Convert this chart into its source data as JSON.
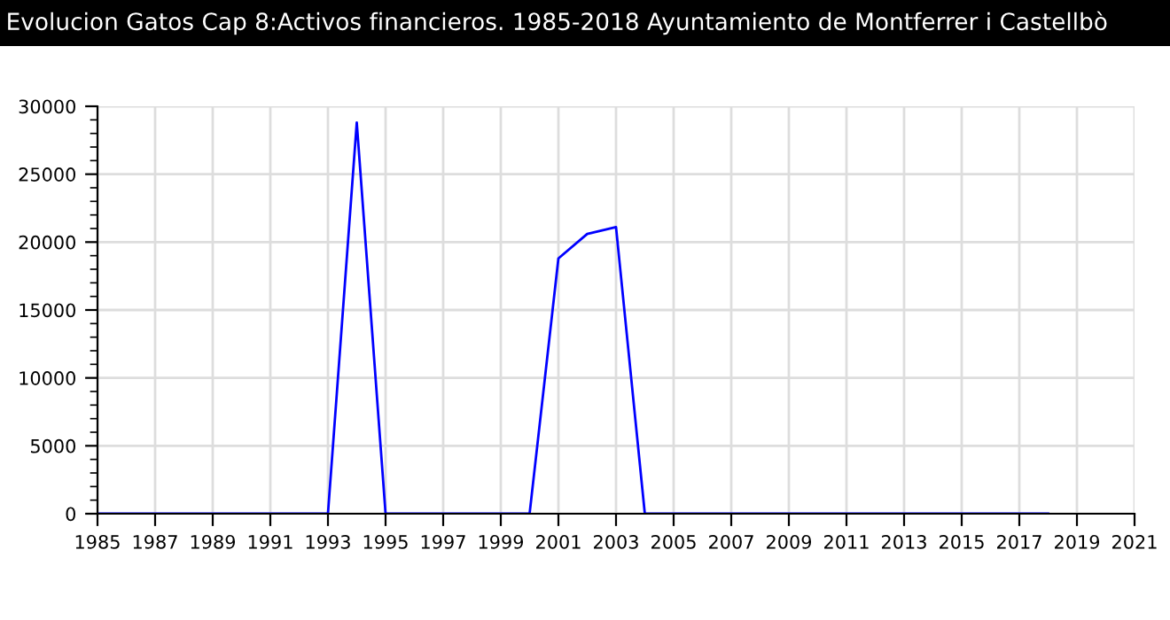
{
  "chart_data": {
    "type": "line",
    "title": "Evolucion Gatos Cap 8:Activos financieros. 1985-2018 Ayuntamiento de Montferrer i Castellbò",
    "x": [
      1985,
      1986,
      1987,
      1988,
      1989,
      1990,
      1991,
      1992,
      1993,
      1994,
      1995,
      1996,
      1997,
      1998,
      1999,
      2000,
      2001,
      2002,
      2003,
      2004,
      2005,
      2006,
      2007,
      2008,
      2009,
      2010,
      2011,
      2012,
      2013,
      2014,
      2015,
      2016,
      2017,
      2018
    ],
    "series": [
      {
        "color": "#0000ff",
        "values": [
          0,
          0,
          0,
          0,
          0,
          0,
          0,
          0,
          0,
          28800,
          0,
          0,
          0,
          0,
          0,
          0,
          18800,
          20600,
          21100,
          0,
          0,
          0,
          0,
          0,
          0,
          0,
          0,
          0,
          0,
          0,
          0,
          0,
          0,
          0
        ]
      }
    ],
    "xlim": [
      1985,
      2021
    ],
    "xticks": [
      1985,
      1987,
      1989,
      1991,
      1993,
      1995,
      1997,
      1999,
      2001,
      2003,
      2005,
      2007,
      2009,
      2011,
      2013,
      2015,
      2017,
      2019,
      2021
    ],
    "ylim": [
      0,
      30000
    ],
    "yticks": [
      0,
      5000,
      10000,
      15000,
      20000,
      25000,
      30000
    ],
    "grid": true,
    "marker": "none",
    "line_style": "solid"
  }
}
